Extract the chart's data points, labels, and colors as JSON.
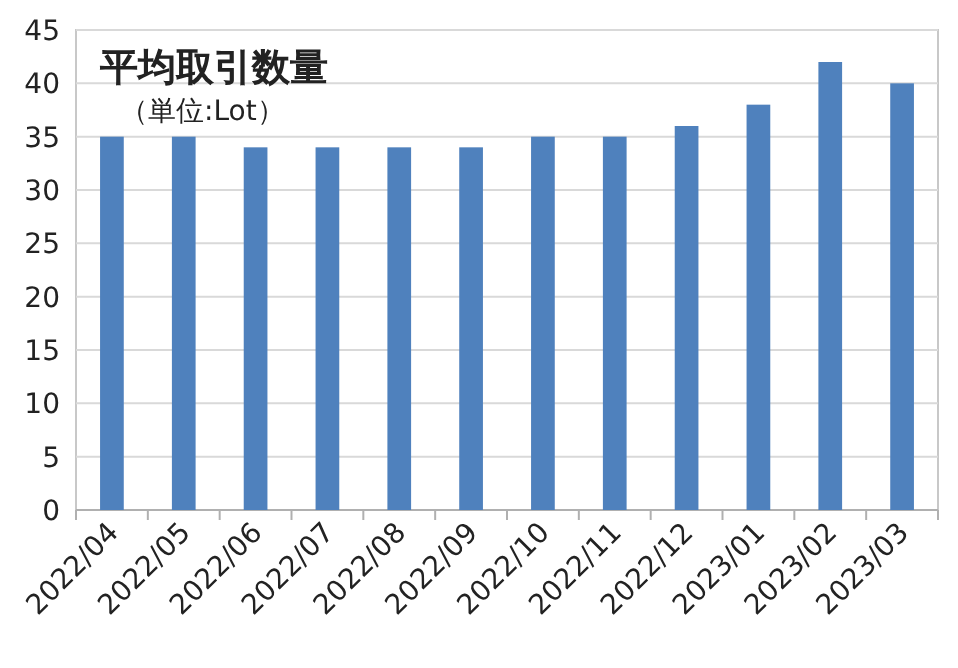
{
  "chart_data": {
    "type": "bar",
    "title": "平均取引数量",
    "subtitle": "（単位:Lot）",
    "categories": [
      "2022/04",
      "2022/05",
      "2022/06",
      "2022/07",
      "2022/08",
      "2022/09",
      "2022/10",
      "2022/11",
      "2022/12",
      "2023/01",
      "2023/02",
      "2023/03"
    ],
    "values": [
      35,
      35,
      34,
      34,
      34,
      34,
      35,
      35,
      36,
      38,
      42,
      40
    ],
    "color": "#4f81bd",
    "ylim": [
      0,
      45
    ],
    "yticks": [
      0,
      5,
      10,
      15,
      20,
      25,
      30,
      35,
      40,
      45
    ],
    "grid": "y"
  }
}
